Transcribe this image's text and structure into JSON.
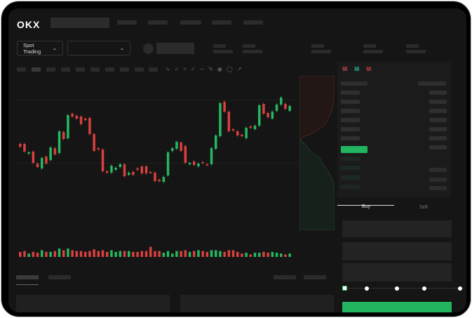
{
  "brand": {
    "logo": "OKX"
  },
  "market": {
    "mode_label": "Spot Trading",
    "pair_value": ""
  },
  "order_form": {
    "buy_label": "Buy",
    "sell_label": "Sell",
    "active_tab": "Buy",
    "slider_percent": 0
  },
  "colors": {
    "up": "#25b860",
    "down": "#d9403f",
    "background": "#151515",
    "accent_green": "#22b45e"
  },
  "icons": [
    "chevron-down-icon",
    "orderbook-both-icon",
    "orderbook-buy-icon",
    "orderbook-sell-icon"
  ],
  "chart_data": {
    "type": "candlestick",
    "candles": [
      [
        97,
        93
      ],
      [
        97,
        86
      ],
      [
        83,
        85
      ],
      [
        86,
        70
      ],
      [
        69,
        64
      ],
      [
        62,
        77
      ],
      [
        79,
        69
      ],
      [
        74,
        92
      ],
      [
        91,
        82
      ],
      [
        84,
        115
      ],
      [
        114,
        104
      ],
      [
        105,
        138
      ],
      [
        140,
        136
      ],
      [
        137,
        133
      ],
      [
        136,
        125
      ],
      [
        133,
        131
      ],
      [
        134,
        111
      ],
      [
        111,
        87
      ],
      [
        91,
        89
      ],
      [
        89,
        58
      ],
      [
        58,
        56
      ],
      [
        56,
        66
      ],
      [
        60,
        63
      ],
      [
        64,
        68
      ],
      [
        68,
        51
      ],
      [
        53,
        56
      ],
      [
        57,
        53
      ],
      [
        62,
        60
      ],
      [
        65,
        55
      ],
      [
        65,
        55
      ],
      [
        57,
        56
      ],
      [
        56,
        44
      ],
      [
        46,
        44
      ],
      [
        43,
        50
      ],
      [
        52,
        85
      ],
      [
        87,
        91
      ],
      [
        90,
        100
      ],
      [
        99,
        87
      ],
      [
        94,
        70
      ],
      [
        68,
        70
      ],
      [
        72,
        67
      ],
      [
        65,
        69
      ],
      [
        71,
        70
      ],
      [
        68,
        67
      ],
      [
        68,
        91
      ],
      [
        90,
        109
      ],
      [
        108,
        155
      ],
      [
        157,
        143
      ],
      [
        143,
        115
      ],
      [
        118,
        116
      ],
      [
        115,
        109
      ],
      [
        110,
        108
      ],
      [
        105,
        120
      ],
      [
        122,
        120
      ],
      [
        118,
        123
      ],
      [
        123,
        152
      ],
      [
        154,
        140
      ],
      [
        141,
        135
      ],
      [
        133,
        143
      ],
      [
        144,
        153
      ],
      [
        153,
        163
      ],
      [
        154,
        147
      ],
      [
        144,
        151
      ]
    ],
    "volume": [
      6,
      7,
      4,
      6,
      5,
      8,
      6,
      6,
      7,
      10,
      8,
      10,
      8,
      7,
      7,
      6,
      7,
      9,
      7,
      8,
      6,
      8,
      6,
      7,
      7,
      7,
      6,
      6,
      7,
      7,
      12,
      7,
      7,
      5,
      7,
      4,
      7,
      7,
      8,
      6,
      7,
      8,
      7,
      6,
      8,
      8,
      7,
      6,
      8,
      8,
      6,
      4,
      5,
      3,
      5,
      5,
      6,
      5,
      6,
      5,
      4,
      3,
      4
    ]
  }
}
